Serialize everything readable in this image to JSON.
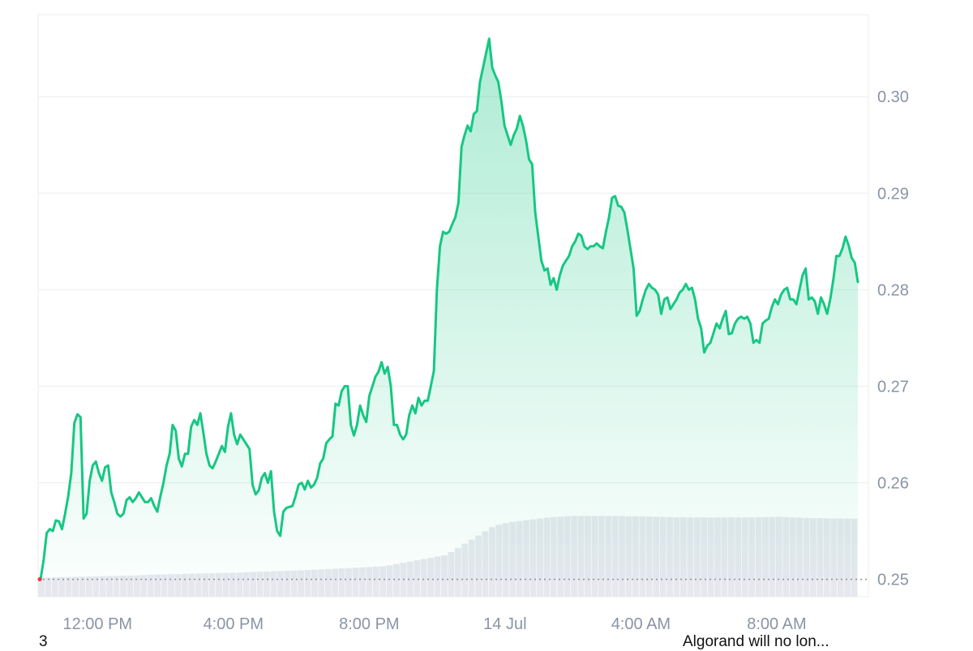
{
  "chart_data": {
    "type": "area",
    "title": "",
    "xlabel": "",
    "ylabel": "",
    "x_tick_labels": [
      "12:00 PM",
      "4:00 PM",
      "8:00 PM",
      "14 Jul",
      "4:00 AM",
      "8:00 AM"
    ],
    "y_tick_labels": [
      "0.25",
      "0.26",
      "0.27",
      "0.28",
      "0.29",
      "0.30"
    ],
    "y_ticks": [
      0.25,
      0.26,
      0.27,
      0.28,
      0.29,
      0.3
    ],
    "ylim": [
      0.2482,
      0.3085
    ],
    "reference_price": 0.25,
    "grid": true,
    "line_color": "#16c784",
    "reference_marker_color": "#ea3943",
    "volume_color": "#e6e8ee",
    "series": [
      {
        "values": [
          0.25,
          0.252,
          0.2548,
          0.2552,
          0.255,
          0.2561,
          0.256,
          0.2552,
          0.2568,
          0.2586,
          0.261,
          0.2662,
          0.2671,
          0.2668,
          0.2563,
          0.2568,
          0.2602,
          0.2618,
          0.2622,
          0.261,
          0.2602,
          0.2616,
          0.2618,
          0.259,
          0.258,
          0.2568,
          0.2565,
          0.2568,
          0.2582,
          0.2585,
          0.258,
          0.2584,
          0.259,
          0.2585,
          0.258,
          0.258,
          0.2584,
          0.2576,
          0.257,
          0.2586,
          0.26,
          0.2618,
          0.263,
          0.266,
          0.2654,
          0.2625,
          0.2617,
          0.263,
          0.263,
          0.2658,
          0.2665,
          0.266,
          0.2672,
          0.2652,
          0.263,
          0.2618,
          0.2615,
          0.2622,
          0.263,
          0.2638,
          0.2632,
          0.2658,
          0.2672,
          0.265,
          0.264,
          0.265,
          0.2645,
          0.264,
          0.2635,
          0.2598,
          0.2588,
          0.2592,
          0.2605,
          0.261,
          0.26,
          0.2612,
          0.257,
          0.255,
          0.2545,
          0.257,
          0.2574,
          0.2575,
          0.2576,
          0.2586,
          0.2598,
          0.26,
          0.2593,
          0.2602,
          0.2595,
          0.2598,
          0.2605,
          0.262,
          0.2625,
          0.2641,
          0.2645,
          0.2648,
          0.2682,
          0.268,
          0.2695,
          0.27,
          0.27,
          0.266,
          0.2649,
          0.266,
          0.268,
          0.267,
          0.2663,
          0.269,
          0.27,
          0.271,
          0.2715,
          0.2725,
          0.2713,
          0.272,
          0.27,
          0.266,
          0.266,
          0.265,
          0.2645,
          0.265,
          0.267,
          0.268,
          0.2672,
          0.2688,
          0.268,
          0.2685,
          0.2685,
          0.27,
          0.2716,
          0.28,
          0.2845,
          0.286,
          0.2858,
          0.286,
          0.2868,
          0.2875,
          0.289,
          0.2948,
          0.296,
          0.297,
          0.2964,
          0.2982,
          0.2985,
          0.3015,
          0.303,
          0.3045,
          0.306,
          0.303,
          0.3022,
          0.3015,
          0.2995,
          0.297,
          0.296,
          0.295,
          0.296,
          0.2967,
          0.298,
          0.297,
          0.2955,
          0.2935,
          0.293,
          0.288,
          0.2855,
          0.283,
          0.282,
          0.2822,
          0.2805,
          0.2812,
          0.28,
          0.2815,
          0.2825,
          0.283,
          0.2835,
          0.2845,
          0.285,
          0.2858,
          0.2856,
          0.2845,
          0.2842,
          0.2845,
          0.2845,
          0.2848,
          0.2845,
          0.2843,
          0.286,
          0.2875,
          0.2895,
          0.2897,
          0.2887,
          0.2886,
          0.288,
          0.2862,
          0.2842,
          0.2822,
          0.2773,
          0.2778,
          0.279,
          0.28,
          0.2806,
          0.2802,
          0.28,
          0.2795,
          0.2775,
          0.279,
          0.2792,
          0.278,
          0.2785,
          0.279,
          0.2797,
          0.28,
          0.2806,
          0.28,
          0.2802,
          0.279,
          0.277,
          0.276,
          0.2735,
          0.2742,
          0.2745,
          0.2755,
          0.2765,
          0.276,
          0.277,
          0.2778,
          0.2754,
          0.2755,
          0.2765,
          0.277,
          0.2772,
          0.277,
          0.2772,
          0.2765,
          0.2745,
          0.2748,
          0.2745,
          0.2765,
          0.2768,
          0.277,
          0.2782,
          0.279,
          0.2785,
          0.2795,
          0.28,
          0.2802,
          0.279,
          0.279,
          0.2785,
          0.28,
          0.2815,
          0.2822,
          0.279,
          0.2792,
          0.2788,
          0.2775,
          0.2792,
          0.2785,
          0.2775,
          0.279,
          0.281,
          0.2835,
          0.2835,
          0.2843,
          0.2855,
          0.2846,
          0.2833,
          0.2828,
          0.2808
        ]
      }
    ],
    "volume": [
      0.23,
      0.232,
      0.234,
      0.236,
      0.238,
      0.24,
      0.242,
      0.244,
      0.246,
      0.248,
      0.25,
      0.252,
      0.254,
      0.256,
      0.258,
      0.262,
      0.266,
      0.268,
      0.27,
      0.272,
      0.274,
      0.276,
      0.278,
      0.28,
      0.282,
      0.284,
      0.286,
      0.288,
      0.29,
      0.292,
      0.295,
      0.298,
      0.301,
      0.304,
      0.307,
      0.31,
      0.313,
      0.316,
      0.319,
      0.322,
      0.326,
      0.33,
      0.334,
      0.338,
      0.342,
      0.346,
      0.35,
      0.354,
      0.358,
      0.362,
      0.368,
      0.38,
      0.395,
      0.41,
      0.425,
      0.44,
      0.455,
      0.47,
      0.485,
      0.5,
      0.54,
      0.59,
      0.64,
      0.69,
      0.74,
      0.79,
      0.84,
      0.87,
      0.89,
      0.905,
      0.915,
      0.925,
      0.935,
      0.945,
      0.955,
      0.962,
      0.968,
      0.972,
      0.975,
      0.976,
      0.976,
      0.976,
      0.975,
      0.975,
      0.975,
      0.974,
      0.973,
      0.972,
      0.97,
      0.968,
      0.966,
      0.964,
      0.962,
      0.96,
      0.958,
      0.958,
      0.958,
      0.958,
      0.958,
      0.958,
      0.958,
      0.958,
      0.958,
      0.958,
      0.958,
      0.96,
      0.962,
      0.964,
      0.966,
      0.962,
      0.958,
      0.955,
      0.952,
      0.95,
      0.95,
      0.948,
      0.946,
      0.945,
      0.944,
      0.944
    ],
    "x_range_hours": [
      10.25,
      34.7
    ],
    "x_tick_hours": [
      12,
      16,
      20,
      24,
      28,
      32
    ]
  },
  "footer": {
    "left_text": "3",
    "right_text": "Algorand will no lon..."
  }
}
